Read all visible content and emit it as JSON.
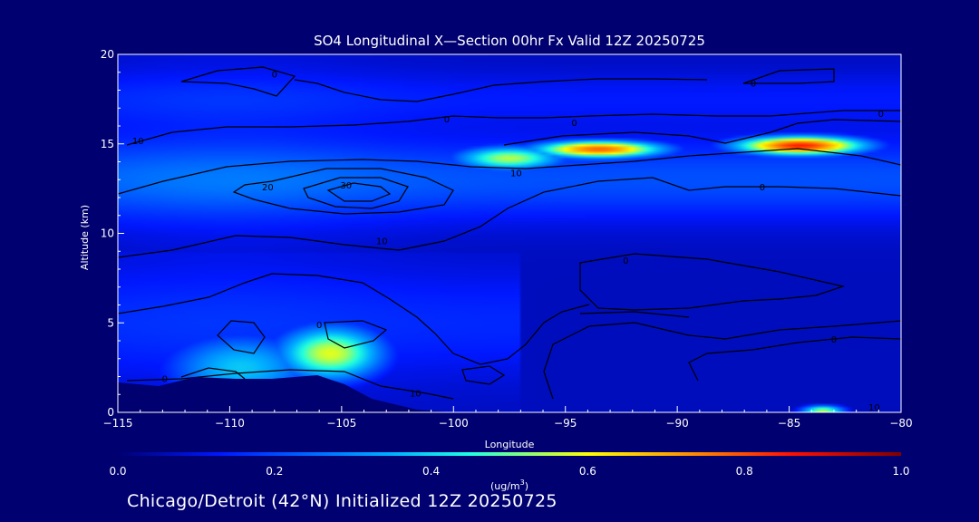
{
  "chart_data": {
    "type": "heatmap",
    "title": "SO4 Longitudinal X—Section 00hr  Fx Valid 12Z 20250725",
    "xlabel": "Longitude",
    "ylabel": "Altitude (km)",
    "xlim": [
      -115,
      -80
    ],
    "ylim": [
      0,
      20
    ],
    "x_ticks": [
      -115,
      -110,
      -105,
      -100,
      -95,
      -90,
      -85,
      -80
    ],
    "x_tick_labels": [
      "−115",
      "−110",
      "−105",
      "−100",
      "−95",
      "−90",
      "−85",
      "−80"
    ],
    "y_ticks": [
      0,
      5,
      10,
      15,
      20
    ],
    "y_tick_labels": [
      "0",
      "5",
      "10",
      "15",
      "20"
    ],
    "colorbar": {
      "min": 0.0,
      "max": 1.0,
      "ticks": [
        0.0,
        0.2,
        0.4,
        0.6,
        0.8,
        1.0
      ],
      "tick_labels": [
        "0.0",
        "0.2",
        "0.4",
        "0.6",
        "0.8",
        "1.0"
      ],
      "units_prefix": "(ug/m",
      "units_superscript": "3",
      "units_suffix": ")"
    },
    "field_features": [
      {
        "name": "upper-plume-east",
        "lon": -84.5,
        "alt": 14.9,
        "value": 0.85,
        "lon_radius": 3.0,
        "alt_radius": 0.55
      },
      {
        "name": "upper-plume-mid",
        "lon": -93.5,
        "alt": 14.7,
        "value": 0.78,
        "lon_radius": 3.0,
        "alt_radius": 0.5
      },
      {
        "name": "upper-plume-transition",
        "lon": -97.5,
        "alt": 14.2,
        "value": 0.55,
        "lon_radius": 2.5,
        "alt_radius": 0.7
      },
      {
        "name": "lower-plume-core",
        "lon": -105.5,
        "alt": 3.3,
        "value": 0.58,
        "lon_radius": 2.5,
        "alt_radius": 1.6
      },
      {
        "name": "lower-plume-west",
        "lon": -109.5,
        "alt": 2.5,
        "value": 0.38,
        "lon_radius": 3.5,
        "alt_radius": 2.0
      },
      {
        "name": "surface-east-hotspot",
        "lon": -83.5,
        "alt": 0.1,
        "value": 0.55,
        "lon_radius": 1.0,
        "alt_radius": 0.3
      }
    ],
    "contour_labels": [
      {
        "text": "0",
        "lon": -108.0,
        "alt": 18.9
      },
      {
        "text": "0",
        "lon": -100.3,
        "alt": 16.4
      },
      {
        "text": "0",
        "lon": -94.6,
        "alt": 16.2
      },
      {
        "text": "0",
        "lon": -86.6,
        "alt": 18.4
      },
      {
        "text": "0",
        "lon": -80.9,
        "alt": 16.7
      },
      {
        "text": "10",
        "lon": -114.1,
        "alt": 15.2
      },
      {
        "text": "10",
        "lon": -97.2,
        "alt": 13.4
      },
      {
        "text": "10",
        "lon": -103.2,
        "alt": 9.6
      },
      {
        "text": "20",
        "lon": -108.3,
        "alt": 12.6
      },
      {
        "text": "30",
        "lon": -104.8,
        "alt": 12.7
      },
      {
        "text": "0",
        "lon": -106.0,
        "alt": 4.9
      },
      {
        "text": "0",
        "lon": -112.9,
        "alt": 1.9
      },
      {
        "text": "10",
        "lon": -101.7,
        "alt": 1.1
      },
      {
        "text": "0",
        "lon": -92.3,
        "alt": 8.5
      },
      {
        "text": "0",
        "lon": -86.2,
        "alt": 12.6
      },
      {
        "text": "0",
        "lon": -83.0,
        "alt": 4.1
      },
      {
        "text": "10",
        "lon": -81.2,
        "alt": 0.3
      }
    ]
  },
  "caption": "Chicago/Detroit (42°N) Initialized 12Z 20250725"
}
